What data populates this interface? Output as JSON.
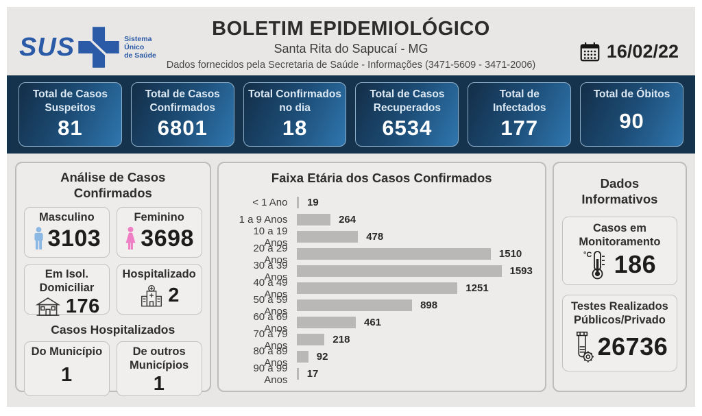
{
  "header": {
    "logo_text": "SUS",
    "logo_subtext": "Sistema\nÚnico\nde Saúde",
    "title": "BOLETIM EPIDEMIOLÓGICO",
    "subtitle": "Santa Rita do Sapucaí - MG",
    "info_line": "Dados fornecidos pela Secretaria de Saúde - Informações (3471-5609 - 3471-2006)",
    "date": "16/02/22"
  },
  "stats": [
    {
      "label": "Total de Casos\nSuspeitos",
      "value": "81"
    },
    {
      "label": "Total de Casos\nConfirmados",
      "value": "6801"
    },
    {
      "label": "Total Confirmados\nno dia",
      "value": "18"
    },
    {
      "label": "Total de Casos\nRecuperados",
      "value": "6534"
    },
    {
      "label": "Total de\nInfectados",
      "value": "177"
    },
    {
      "label": "Total de Óbitos",
      "value": "90"
    }
  ],
  "analysis": {
    "title": "Análise de Casos Confirmados",
    "cards": [
      {
        "label": "Masculino",
        "value": "3103",
        "icon": "male-icon",
        "icon_color": "#8bb9e3"
      },
      {
        "label": "Feminino",
        "value": "3698",
        "icon": "female-icon",
        "icon_color": "#ee7fc4"
      },
      {
        "label": "Em Isol.\nDomiciliar",
        "value": "176",
        "icon": "house-icon"
      },
      {
        "label": "Hospitalizado",
        "value": "2",
        "icon": "hospital-icon"
      }
    ],
    "hospitalized_title": "Casos Hospitalizados",
    "hospitalized_cards": [
      {
        "label": "Do Município",
        "value": "1"
      },
      {
        "label": "De outros\nMunicípios",
        "value": "1"
      }
    ]
  },
  "chart_data": {
    "type": "bar",
    "orientation": "horizontal",
    "title": "Faixa Etária dos Casos Confirmados",
    "categories": [
      "< 1 Ano",
      "1 a 9 Anos",
      "10 a 19 Anos",
      "20 a 29 Anos",
      "30 a 39 Anos",
      "40 a 49 Anos",
      "50 a 59 Anos",
      "60 a 69 Anos",
      "70 a 79 Anos",
      "80 a 89 Anos",
      "90 a 99 Anos"
    ],
    "values": [
      19,
      264,
      478,
      1510,
      1593,
      1251,
      898,
      461,
      218,
      92,
      17
    ],
    "xlim": [
      0,
      1593
    ],
    "bar_color": "#b9b8b6",
    "grid": false,
    "data_labels": true
  },
  "info_panel": {
    "title": "Dados\nInformativos",
    "cards": [
      {
        "label": "Casos em\nMonitoramento",
        "value": "186",
        "icon": "thermometer-icon"
      },
      {
        "label": "Testes Realizados\nPúblicos/Privado",
        "value": "26736",
        "icon": "testtube-icon"
      }
    ]
  },
  "colors": {
    "band_bg": "#16334d",
    "stat_card_gradient_start": "#132e48",
    "stat_card_gradient_end": "#2f76ae",
    "stat_card_border": "#8fb0ca",
    "panel_bg": "#edecea",
    "panel_border": "#bdbcba",
    "bar": "#b9b8b6",
    "sus_blue": "#2b5aa7",
    "male_icon": "#8bb9e3",
    "female_icon": "#ee7fc4"
  }
}
